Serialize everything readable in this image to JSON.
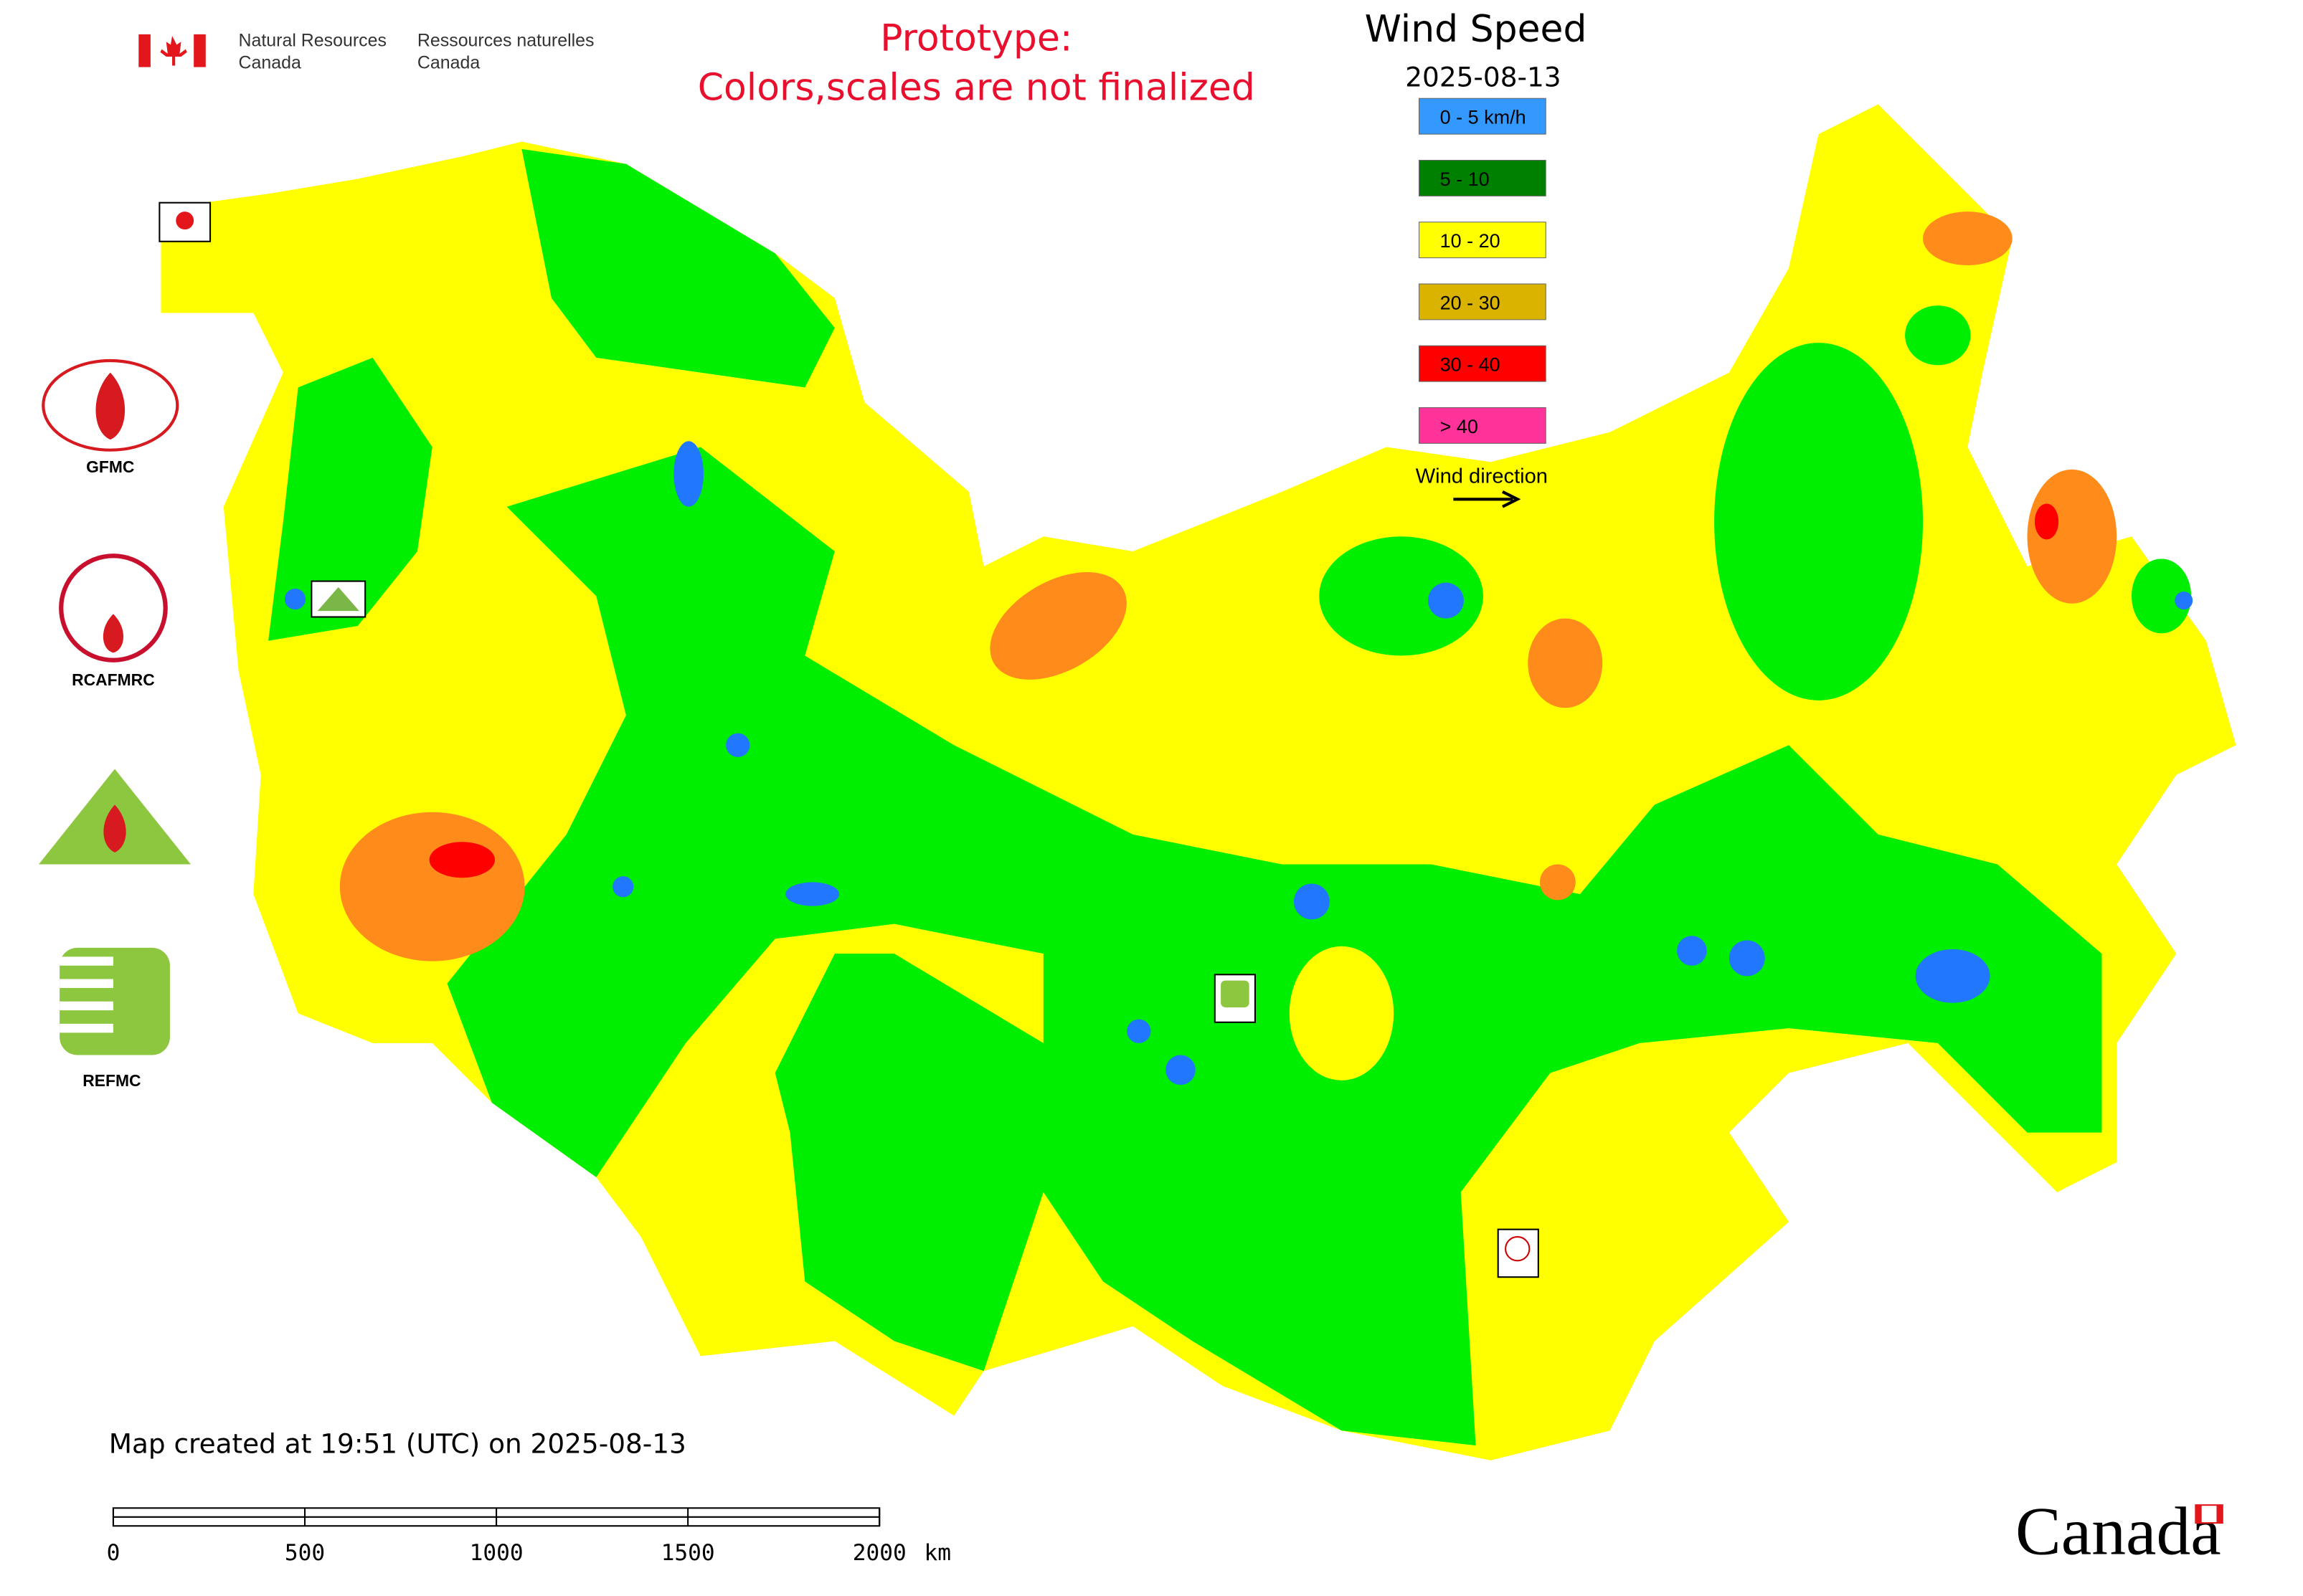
{
  "header": {
    "department_en_lines": [
      "Natural Resources",
      "Canada"
    ],
    "department_fr_lines": [
      "Ressources naturelles",
      "Canada"
    ],
    "notice_lines": [
      "Prototype:",
      "Colors,scales are not finalized"
    ]
  },
  "legend": {
    "title": "Wind Speed",
    "date": "2025-08-13",
    "items": [
      {
        "label": "0 - 5 km/h",
        "color": "#3399ff"
      },
      {
        "label": "5 - 10",
        "color": "#008000"
      },
      {
        "label": "10 - 20",
        "color": "#ffff00"
      },
      {
        "label": "20 - 30",
        "color": "#d9b300"
      },
      {
        "label": "30 - 40",
        "color": "#ff0000"
      },
      {
        "label": "> 40",
        "color": "#ff3399"
      }
    ],
    "direction_label": "Wind direction"
  },
  "logos": [
    {
      "label": "GFMC"
    },
    {
      "label": "RCAFMRC"
    },
    {
      "label": "REFMC"
    }
  ],
  "footer": {
    "created": "Map created at 19:51 (UTC) on 2025-08-13",
    "scale_bar": {
      "ticks": [
        0,
        500,
        1000,
        1500,
        2000
      ],
      "unit": "km"
    },
    "wordmark": "Canada"
  }
}
